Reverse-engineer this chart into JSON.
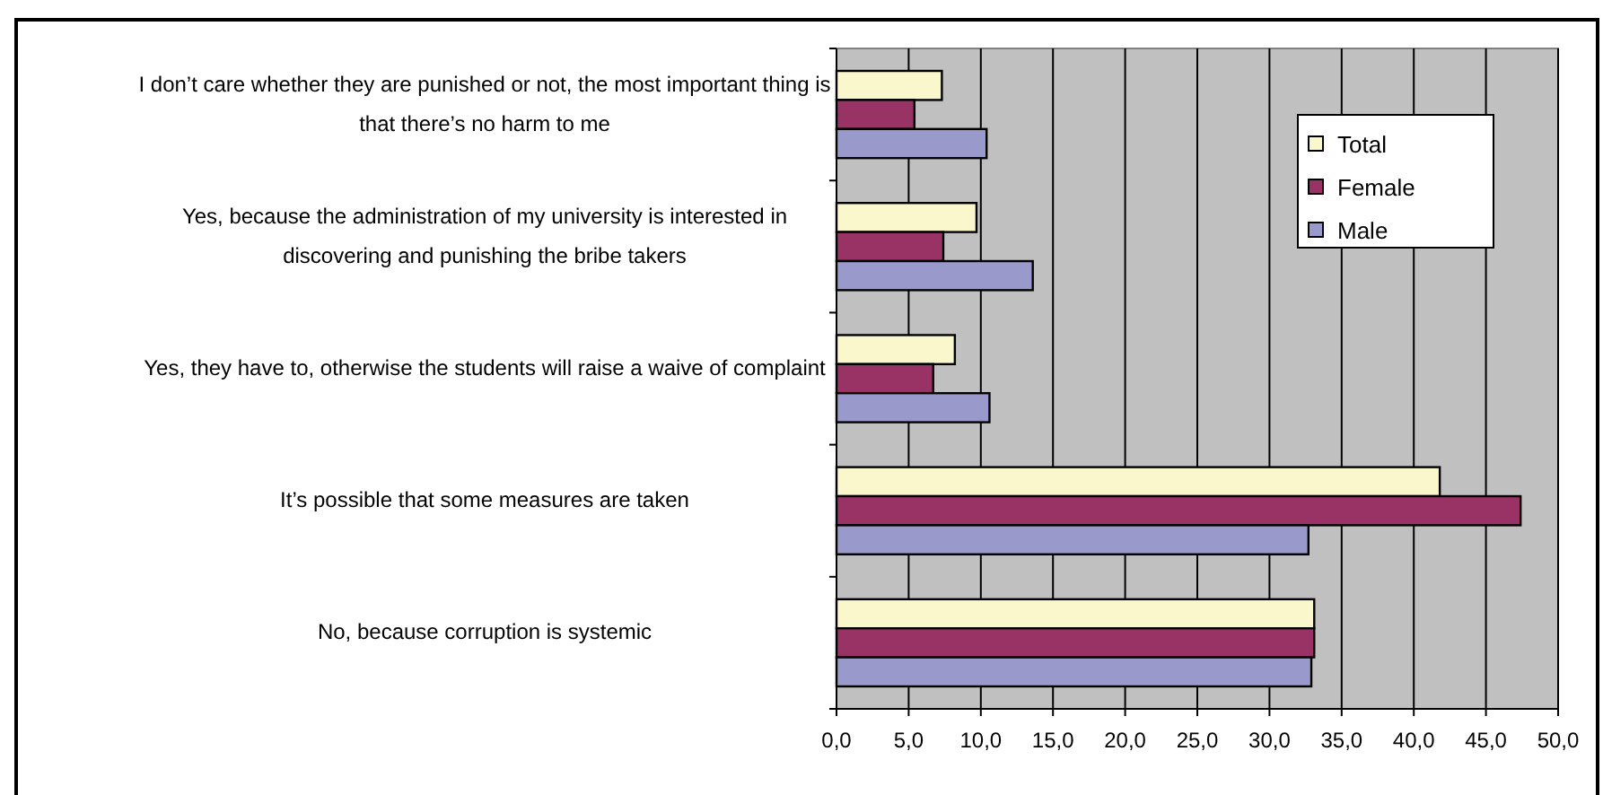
{
  "chart_data": {
    "type": "bar",
    "orientation": "horizontal",
    "categories": [
      "I don’t care whether they are punished or not, the most important thing is that there’s no harm to me",
      "Yes, because the administration of my university is interested in discovering and punishing the bribe takers",
      "Yes, they have to, otherwise the students will raise a waive of complaint",
      "It’s possible that some measures are taken",
      "No, because corruption is systemic"
    ],
    "series": [
      {
        "name": "Total",
        "color": "#faf7cc",
        "values": [
          7.3,
          9.7,
          8.2,
          41.8,
          33.1
        ]
      },
      {
        "name": "Female",
        "color": "#993366",
        "values": [
          5.4,
          7.4,
          6.7,
          47.4,
          33.1
        ]
      },
      {
        "name": "Male",
        "color": "#9999cc",
        "values": [
          10.4,
          13.6,
          10.6,
          32.7,
          32.9
        ]
      }
    ],
    "xlim": [
      0,
      50
    ],
    "xticks": [
      {
        "value": 0,
        "label": "0,0"
      },
      {
        "value": 5,
        "label": "5,0"
      },
      {
        "value": 10,
        "label": "10,0"
      },
      {
        "value": 15,
        "label": "15,0"
      },
      {
        "value": 20,
        "label": "20,0"
      },
      {
        "value": 25,
        "label": "25,0"
      },
      {
        "value": 30,
        "label": "30,0"
      },
      {
        "value": 35,
        "label": "35,0"
      },
      {
        "value": 40,
        "label": "40,0"
      },
      {
        "value": 45,
        "label": "45,0"
      },
      {
        "value": 50,
        "label": "50,0"
      }
    ],
    "grid": "x",
    "legend": "top right"
  }
}
